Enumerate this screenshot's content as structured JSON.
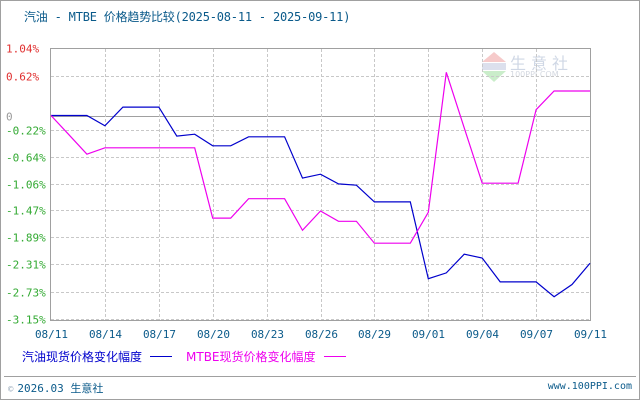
{
  "title": "汽油 - MTBE 价格趋势比较(2025-08-11 - 2025-09-11)",
  "colors": {
    "series1": "#0000cc",
    "series2": "#ee00ee",
    "positive_label": "#e03030",
    "negative_label": "#33aa33",
    "zero_label": "#999999",
    "grid": "#c8c8c8",
    "axis": "#a0a0a0",
    "text": "#0a5a8a"
  },
  "watermark": {
    "main": "生意社",
    "sub": "100PPI.COM",
    "logo": "PPI"
  },
  "legend": {
    "series1_label": "汽油现货价格变化幅度",
    "series2_label": "MTBE现货价格变化幅度"
  },
  "footer": {
    "copyright_symbol": "©",
    "left": "2026.03 生意社",
    "right": "www.100PPI.com"
  },
  "chart_data": {
    "type": "line",
    "title": "汽油 - MTBE 价格趋势比较(2025-08-11 - 2025-09-11)",
    "xlabel": "",
    "ylabel": "",
    "ylim": [
      -3.15,
      1.04
    ],
    "grid": true,
    "legend_position": "bottom",
    "y_ticks": [
      "1.04%",
      "0.62%",
      "0",
      "-0.22%",
      "-0.64%",
      "-1.06%",
      "-1.47%",
      "-1.89%",
      "-2.31%",
      "-2.73%",
      "-3.15%"
    ],
    "y_tick_values": [
      1.04,
      0.62,
      0,
      -0.22,
      -0.64,
      -1.06,
      -1.47,
      -1.89,
      -2.31,
      -2.73,
      -3.15
    ],
    "x_tick_labels": [
      "08/11",
      "08/14",
      "08/17",
      "08/20",
      "08/23",
      "08/26",
      "08/29",
      "09/01",
      "09/04",
      "09/07",
      "09/11"
    ],
    "x_points": 31,
    "series": [
      {
        "name": "汽油现货价格变化幅度",
        "color": "#0000cc",
        "values": [
          0,
          0,
          0,
          -0.16,
          0.13,
          0.13,
          0.13,
          -0.32,
          -0.29,
          -0.47,
          -0.47,
          -0.33,
          -0.33,
          -0.33,
          -0.97,
          -0.91,
          -1.06,
          -1.08,
          -1.34,
          -1.34,
          -1.34,
          -2.53,
          -2.44,
          -2.15,
          -2.21,
          -2.58,
          -2.58,
          -2.58,
          -2.81,
          -2.62,
          -2.29
        ]
      },
      {
        "name": "MTBE现货价格变化幅度",
        "color": "#ee00ee",
        "values": [
          0,
          -0.3,
          -0.6,
          -0.5,
          -0.5,
          -0.5,
          -0.5,
          -0.5,
          -0.5,
          -1.59,
          -1.59,
          -1.29,
          -1.29,
          -1.29,
          -1.78,
          -1.48,
          -1.64,
          -1.64,
          -1.98,
          -1.98,
          -1.98,
          -1.5,
          0.67,
          -0.19,
          -1.05,
          -1.05,
          -1.05,
          0.09,
          0.38,
          0.38,
          0.38
        ]
      }
    ]
  }
}
